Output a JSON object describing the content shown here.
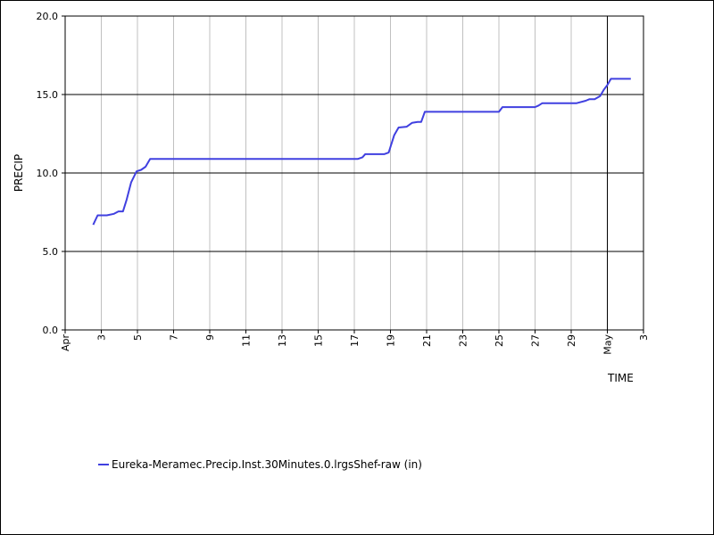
{
  "chart_data": {
    "type": "line",
    "ylabel": "PRECIP",
    "xlabel": "TIME",
    "ylim": [
      0,
      20
    ],
    "yticks": [
      "0.0",
      "5.0",
      "10.0",
      "15.0",
      "20.0"
    ],
    "xlim": [
      "Apr 1",
      "May 3"
    ],
    "xticks": [
      {
        "day": 1,
        "label": "Apr"
      },
      {
        "day": 3,
        "label": "3"
      },
      {
        "day": 5,
        "label": "5"
      },
      {
        "day": 7,
        "label": "7"
      },
      {
        "day": 9,
        "label": "9"
      },
      {
        "day": 11,
        "label": "11"
      },
      {
        "day": 13,
        "label": "13"
      },
      {
        "day": 15,
        "label": "15"
      },
      {
        "day": 17,
        "label": "17"
      },
      {
        "day": 19,
        "label": "19"
      },
      {
        "day": 21,
        "label": "21"
      },
      {
        "day": 23,
        "label": "23"
      },
      {
        "day": 25,
        "label": "25"
      },
      {
        "day": 27,
        "label": "27"
      },
      {
        "day": 29,
        "label": "29"
      },
      {
        "day": 31,
        "label": "May"
      },
      {
        "day": 33,
        "label": "3"
      }
    ],
    "grid": {
      "vertical": true,
      "horizontal": true
    },
    "legend_position": "bottom",
    "series": [
      {
        "name": "Eureka-Meramec.Precip.Inst.30Minutes.0.lrgsShef-raw (in)",
        "color": "#4040e0",
        "points": [
          [
            2.55,
            6.7
          ],
          [
            2.8,
            7.3
          ],
          [
            3.3,
            7.3
          ],
          [
            3.7,
            7.4
          ],
          [
            3.95,
            7.55
          ],
          [
            4.2,
            7.55
          ],
          [
            4.4,
            8.3
          ],
          [
            4.65,
            9.4
          ],
          [
            4.95,
            10.1
          ],
          [
            5.2,
            10.2
          ],
          [
            5.45,
            10.4
          ],
          [
            5.7,
            10.9
          ],
          [
            6.5,
            10.9
          ],
          [
            10.0,
            10.9
          ],
          [
            15.0,
            10.9
          ],
          [
            17.2,
            10.9
          ],
          [
            17.45,
            11.0
          ],
          [
            17.6,
            11.2
          ],
          [
            18.2,
            11.2
          ],
          [
            18.65,
            11.2
          ],
          [
            18.9,
            11.3
          ],
          [
            19.2,
            12.4
          ],
          [
            19.45,
            12.9
          ],
          [
            19.9,
            12.95
          ],
          [
            20.2,
            13.2
          ],
          [
            20.5,
            13.25
          ],
          [
            20.7,
            13.25
          ],
          [
            20.9,
            13.9
          ],
          [
            23.0,
            13.9
          ],
          [
            25.0,
            13.9
          ],
          [
            25.2,
            14.2
          ],
          [
            26.0,
            14.2
          ],
          [
            27.0,
            14.2
          ],
          [
            27.2,
            14.3
          ],
          [
            27.4,
            14.45
          ],
          [
            28.5,
            14.45
          ],
          [
            29.3,
            14.45
          ],
          [
            29.8,
            14.6
          ],
          [
            30.0,
            14.7
          ],
          [
            30.3,
            14.7
          ],
          [
            30.6,
            14.9
          ],
          [
            30.8,
            15.3
          ],
          [
            31.0,
            15.6
          ],
          [
            31.2,
            16.0
          ],
          [
            32.0,
            16.0
          ],
          [
            32.3,
            16.0
          ]
        ]
      }
    ]
  }
}
